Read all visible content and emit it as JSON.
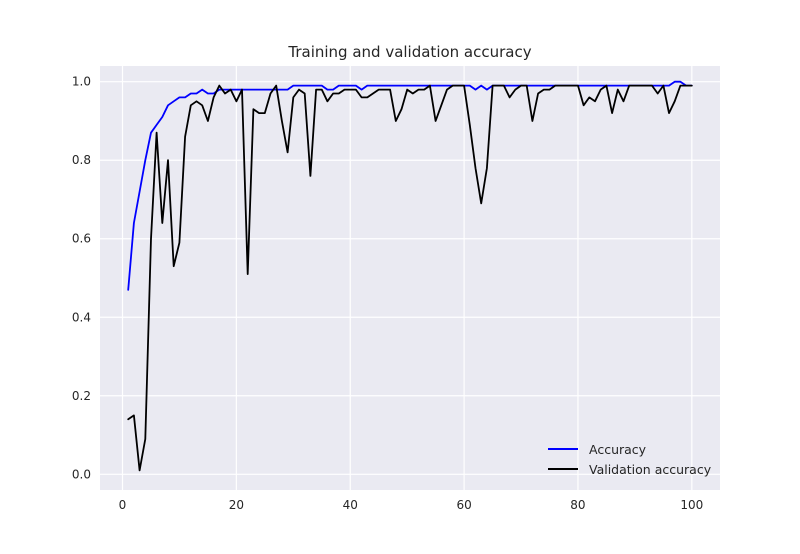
{
  "chart_data": {
    "type": "line",
    "title": "Training and validation accuracy",
    "xlabel": "",
    "ylabel": "",
    "xlim": [
      -3.95,
      104.95
    ],
    "ylim": [
      -0.04,
      1.04
    ],
    "xticks": [
      0,
      20,
      40,
      60,
      80,
      100
    ],
    "yticks": [
      0.0,
      0.2,
      0.4,
      0.6,
      0.8,
      1.0
    ],
    "grid": true,
    "legend_position": "lower-right",
    "x": [
      1,
      2,
      3,
      4,
      5,
      6,
      7,
      8,
      9,
      10,
      11,
      12,
      13,
      14,
      15,
      16,
      17,
      18,
      19,
      20,
      21,
      22,
      23,
      24,
      25,
      26,
      27,
      28,
      29,
      30,
      31,
      32,
      33,
      34,
      35,
      36,
      37,
      38,
      39,
      40,
      41,
      42,
      43,
      44,
      45,
      46,
      47,
      48,
      49,
      50,
      51,
      52,
      53,
      54,
      55,
      56,
      57,
      58,
      59,
      60,
      61,
      62,
      63,
      64,
      65,
      66,
      67,
      68,
      69,
      70,
      71,
      72,
      73,
      74,
      75,
      76,
      77,
      78,
      79,
      80,
      81,
      82,
      83,
      84,
      85,
      86,
      87,
      88,
      89,
      90,
      91,
      92,
      93,
      94,
      95,
      96,
      97,
      98,
      99,
      100
    ],
    "series": [
      {
        "name": "Accuracy",
        "color": "#0000ff",
        "values": [
          0.47,
          0.64,
          0.72,
          0.8,
          0.87,
          0.89,
          0.91,
          0.94,
          0.95,
          0.96,
          0.96,
          0.97,
          0.97,
          0.98,
          0.97,
          0.97,
          0.98,
          0.98,
          0.98,
          0.98,
          0.98,
          0.98,
          0.98,
          0.98,
          0.98,
          0.98,
          0.98,
          0.98,
          0.98,
          0.99,
          0.99,
          0.99,
          0.99,
          0.99,
          0.99,
          0.98,
          0.98,
          0.99,
          0.99,
          0.99,
          0.99,
          0.98,
          0.99,
          0.99,
          0.99,
          0.99,
          0.99,
          0.99,
          0.99,
          0.99,
          0.99,
          0.99,
          0.99,
          0.99,
          0.99,
          0.99,
          0.99,
          0.99,
          0.99,
          0.99,
          0.99,
          0.98,
          0.99,
          0.98,
          0.99,
          0.99,
          0.99,
          0.99,
          0.99,
          0.99,
          0.99,
          0.99,
          0.99,
          0.99,
          0.99,
          0.99,
          0.99,
          0.99,
          0.99,
          0.99,
          0.99,
          0.99,
          0.99,
          0.99,
          0.99,
          0.99,
          0.99,
          0.99,
          0.99,
          0.99,
          0.99,
          0.99,
          0.99,
          0.99,
          0.99,
          0.99,
          1.0,
          1.0,
          0.99,
          0.99
        ]
      },
      {
        "name": "Validation accuracy",
        "color": "#000000",
        "values": [
          0.14,
          0.15,
          0.01,
          0.09,
          0.6,
          0.87,
          0.64,
          0.8,
          0.53,
          0.59,
          0.86,
          0.94,
          0.95,
          0.94,
          0.9,
          0.96,
          0.99,
          0.97,
          0.98,
          0.95,
          0.98,
          0.51,
          0.93,
          0.92,
          0.92,
          0.97,
          0.99,
          0.9,
          0.82,
          0.96,
          0.98,
          0.97,
          0.76,
          0.98,
          0.98,
          0.95,
          0.97,
          0.97,
          0.98,
          0.98,
          0.98,
          0.96,
          0.96,
          0.97,
          0.98,
          0.98,
          0.98,
          0.9,
          0.93,
          0.98,
          0.97,
          0.98,
          0.98,
          0.99,
          0.9,
          0.94,
          0.98,
          0.99,
          0.99,
          0.99,
          0.89,
          0.78,
          0.69,
          0.78,
          0.99,
          0.99,
          0.99,
          0.96,
          0.98,
          0.99,
          0.99,
          0.9,
          0.97,
          0.98,
          0.98,
          0.99,
          0.99,
          0.99,
          0.99,
          0.99,
          0.94,
          0.96,
          0.95,
          0.98,
          0.99,
          0.92,
          0.98,
          0.95,
          0.99,
          0.99,
          0.99,
          0.99,
          0.99,
          0.97,
          0.99,
          0.92,
          0.95,
          0.99,
          0.99,
          0.99
        ]
      }
    ]
  }
}
